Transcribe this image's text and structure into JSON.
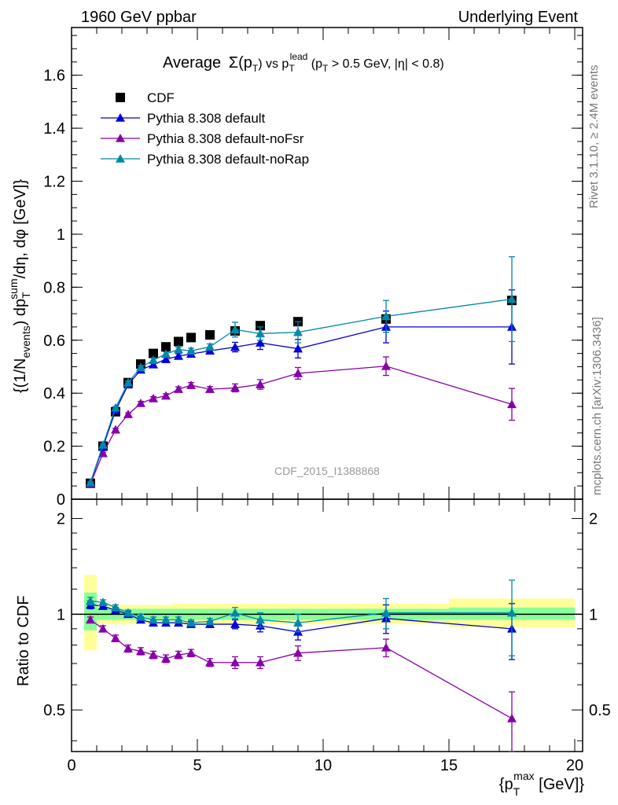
{
  "header": {
    "left": "1960 GeV ppbar",
    "right": "Underlying Event"
  },
  "side_labels": {
    "rivet": "Rivet 3.1.10, ≥ 2.4M events",
    "mcplots": "mcplots.cern.ch [arXiv:1306.3436]"
  },
  "analysis_id": "CDF_2015_I1388868",
  "colors": {
    "CDF": "#000000",
    "default": "#0000dd",
    "noFsr": "#8800aa",
    "noRap": "#0088aa",
    "band_yellow": "#ffff99",
    "band_green": "#88ff99"
  },
  "chart_data": [
    {
      "type": "line",
      "title": "Average Σ(p_T) vs p_T^lead (p_T > 0.5 GeV, |η| < 0.8)",
      "title_parts": {
        "a": "Average",
        "b": "Σ(p",
        "c": "T",
        "d": ") vs p",
        "e": "T",
        "f": "lead",
        "g": " (p",
        "h": "T",
        "i": " > 0.5 GeV, |η| < 0.8)"
      },
      "ylabel": "{(1/N_events) dp_T^sum/dη, dφ [GeV]}",
      "ylabel_parts": {
        "a": "{(1/N",
        "b": "events",
        "c": ") dp",
        "d": "T",
        "e": "sum",
        "f": "/dη, dφ [GeV]}"
      },
      "xlim": [
        0,
        20
      ],
      "ylim": [
        0,
        1.78
      ],
      "y_ticks": [
        "0",
        "0.2",
        "0.4",
        "0.6",
        "0.8",
        "1",
        "1.2",
        "1.4",
        "1.6"
      ],
      "legend_position": "top-left",
      "series": [
        {
          "name": "CDF",
          "x": [
            0.75,
            1.25,
            1.75,
            2.25,
            2.75,
            3.25,
            3.75,
            4.25,
            4.75,
            5.5,
            6.5,
            7.5,
            9.0,
            12.5,
            17.5
          ],
          "y": [
            0.06,
            0.2,
            0.33,
            0.44,
            0.51,
            0.55,
            0.575,
            0.595,
            0.61,
            0.62,
            0.635,
            0.655,
            0.67,
            0.68,
            0.75
          ]
        },
        {
          "name": "Pythia 8.308 default",
          "x": [
            0.75,
            1.25,
            1.75,
            2.25,
            2.75,
            3.25,
            3.75,
            4.25,
            4.75,
            5.5,
            6.5,
            7.5,
            9.0,
            12.5,
            17.5
          ],
          "y": [
            0.062,
            0.197,
            0.335,
            0.432,
            0.488,
            0.508,
            0.528,
            0.54,
            0.548,
            0.56,
            0.574,
            0.59,
            0.568,
            0.65,
            0.65
          ],
          "err": [
            0.003,
            0.004,
            0.005,
            0.006,
            0.007,
            0.008,
            0.008,
            0.009,
            0.01,
            0.01,
            0.018,
            0.025,
            0.035,
            0.06,
            0.14
          ]
        },
        {
          "name": "Pythia 8.308 default-noFsr",
          "x": [
            0.75,
            1.25,
            1.75,
            2.25,
            2.75,
            3.25,
            3.75,
            4.25,
            4.75,
            5.5,
            6.5,
            7.5,
            9.0,
            12.5,
            17.5
          ],
          "y": [
            0.058,
            0.173,
            0.262,
            0.32,
            0.362,
            0.38,
            0.39,
            0.415,
            0.43,
            0.415,
            0.42,
            0.433,
            0.475,
            0.502,
            0.358
          ],
          "err": [
            0.003,
            0.004,
            0.005,
            0.006,
            0.007,
            0.007,
            0.008,
            0.009,
            0.01,
            0.01,
            0.015,
            0.018,
            0.022,
            0.035,
            0.06
          ]
        },
        {
          "name": "Pythia 8.308 default-noRap",
          "x": [
            0.75,
            1.25,
            1.75,
            2.25,
            2.75,
            3.25,
            3.75,
            4.25,
            4.75,
            5.5,
            6.5,
            7.5,
            9.0,
            12.5,
            17.5
          ],
          "y": [
            0.063,
            0.205,
            0.345,
            0.44,
            0.497,
            0.525,
            0.548,
            0.565,
            0.56,
            0.575,
            0.64,
            0.625,
            0.63,
            0.69,
            0.755
          ],
          "err": [
            0.003,
            0.004,
            0.005,
            0.006,
            0.007,
            0.008,
            0.008,
            0.009,
            0.01,
            0.011,
            0.028,
            0.025,
            0.04,
            0.06,
            0.16
          ]
        }
      ]
    },
    {
      "type": "line",
      "ylabel": "Ratio to CDF",
      "xlabel": "{p_T^max [GeV]}",
      "xlabel_parts": {
        "a": "{p",
        "b": "T",
        "c": "max",
        "d": " [GeV]}"
      },
      "xlim": [
        0,
        20
      ],
      "ylim": [
        0.37,
        2.3
      ],
      "y_scale": "log",
      "x_ticks": [
        "0",
        "5",
        "10",
        "15",
        "20"
      ],
      "y_ticks": [
        "0.5",
        "1",
        "2"
      ],
      "band": {
        "edges": [
          0.5,
          1.0,
          1.5,
          2.0,
          2.5,
          3.0,
          3.5,
          4.0,
          4.5,
          5.0,
          6.0,
          7.0,
          8.0,
          10.0,
          15.0,
          20.0
        ],
        "yellow_lo": [
          0.77,
          0.93,
          0.93,
          0.93,
          0.94,
          0.94,
          0.94,
          0.93,
          0.93,
          0.93,
          0.93,
          0.93,
          0.93,
          0.93,
          0.91
        ],
        "yellow_hi": [
          1.33,
          1.08,
          1.07,
          1.07,
          1.07,
          1.07,
          1.07,
          1.08,
          1.08,
          1.08,
          1.08,
          1.08,
          1.08,
          1.08,
          1.12
        ],
        "green_lo": [
          0.89,
          0.96,
          0.96,
          0.96,
          0.96,
          0.96,
          0.96,
          0.96,
          0.96,
          0.96,
          0.96,
          0.96,
          0.96,
          0.96,
          0.96
        ],
        "green_hi": [
          1.17,
          1.05,
          1.04,
          1.04,
          1.04,
          1.04,
          1.04,
          1.04,
          1.04,
          1.04,
          1.04,
          1.04,
          1.04,
          1.04,
          1.05
        ]
      },
      "series": [
        {
          "name": "Pythia 8.308 default",
          "x": [
            0.75,
            1.25,
            1.75,
            2.25,
            2.75,
            3.25,
            3.75,
            4.25,
            4.75,
            5.5,
            6.5,
            7.5,
            9.0,
            12.5,
            17.5
          ],
          "y": [
            1.07,
            1.06,
            1.03,
            1.0,
            0.96,
            0.94,
            0.94,
            0.94,
            0.93,
            0.93,
            0.93,
            0.92,
            0.88,
            0.97,
            0.9
          ],
          "err": [
            0.03,
            0.02,
            0.02,
            0.02,
            0.02,
            0.02,
            0.02,
            0.02,
            0.02,
            0.02,
            0.03,
            0.04,
            0.05,
            0.1,
            0.18
          ]
        },
        {
          "name": "Pythia 8.308 default-noFsr",
          "x": [
            0.75,
            1.25,
            1.75,
            2.25,
            2.75,
            3.25,
            3.75,
            4.25,
            4.75,
            5.5,
            6.5,
            7.5,
            9.0,
            12.5,
            17.5
          ],
          "y": [
            0.96,
            0.9,
            0.84,
            0.78,
            0.765,
            0.745,
            0.725,
            0.745,
            0.755,
            0.705,
            0.705,
            0.705,
            0.755,
            0.785,
            0.47
          ],
          "err": [
            0.02,
            0.02,
            0.02,
            0.02,
            0.02,
            0.02,
            0.02,
            0.02,
            0.02,
            0.02,
            0.03,
            0.03,
            0.04,
            0.05,
            0.1
          ]
        },
        {
          "name": "Pythia 8.308 default-noRap",
          "x": [
            0.75,
            1.25,
            1.75,
            2.25,
            2.75,
            3.25,
            3.75,
            4.25,
            4.75,
            5.5,
            6.5,
            7.5,
            9.0,
            12.5,
            17.5
          ],
          "y": [
            1.1,
            1.09,
            1.05,
            1.01,
            0.98,
            0.96,
            0.96,
            0.96,
            0.94,
            0.95,
            1.01,
            0.96,
            0.94,
            1.01,
            1.01
          ],
          "err": [
            0.03,
            0.02,
            0.02,
            0.02,
            0.02,
            0.02,
            0.02,
            0.02,
            0.02,
            0.02,
            0.04,
            0.05,
            0.06,
            0.11,
            0.27
          ]
        }
      ]
    }
  ]
}
